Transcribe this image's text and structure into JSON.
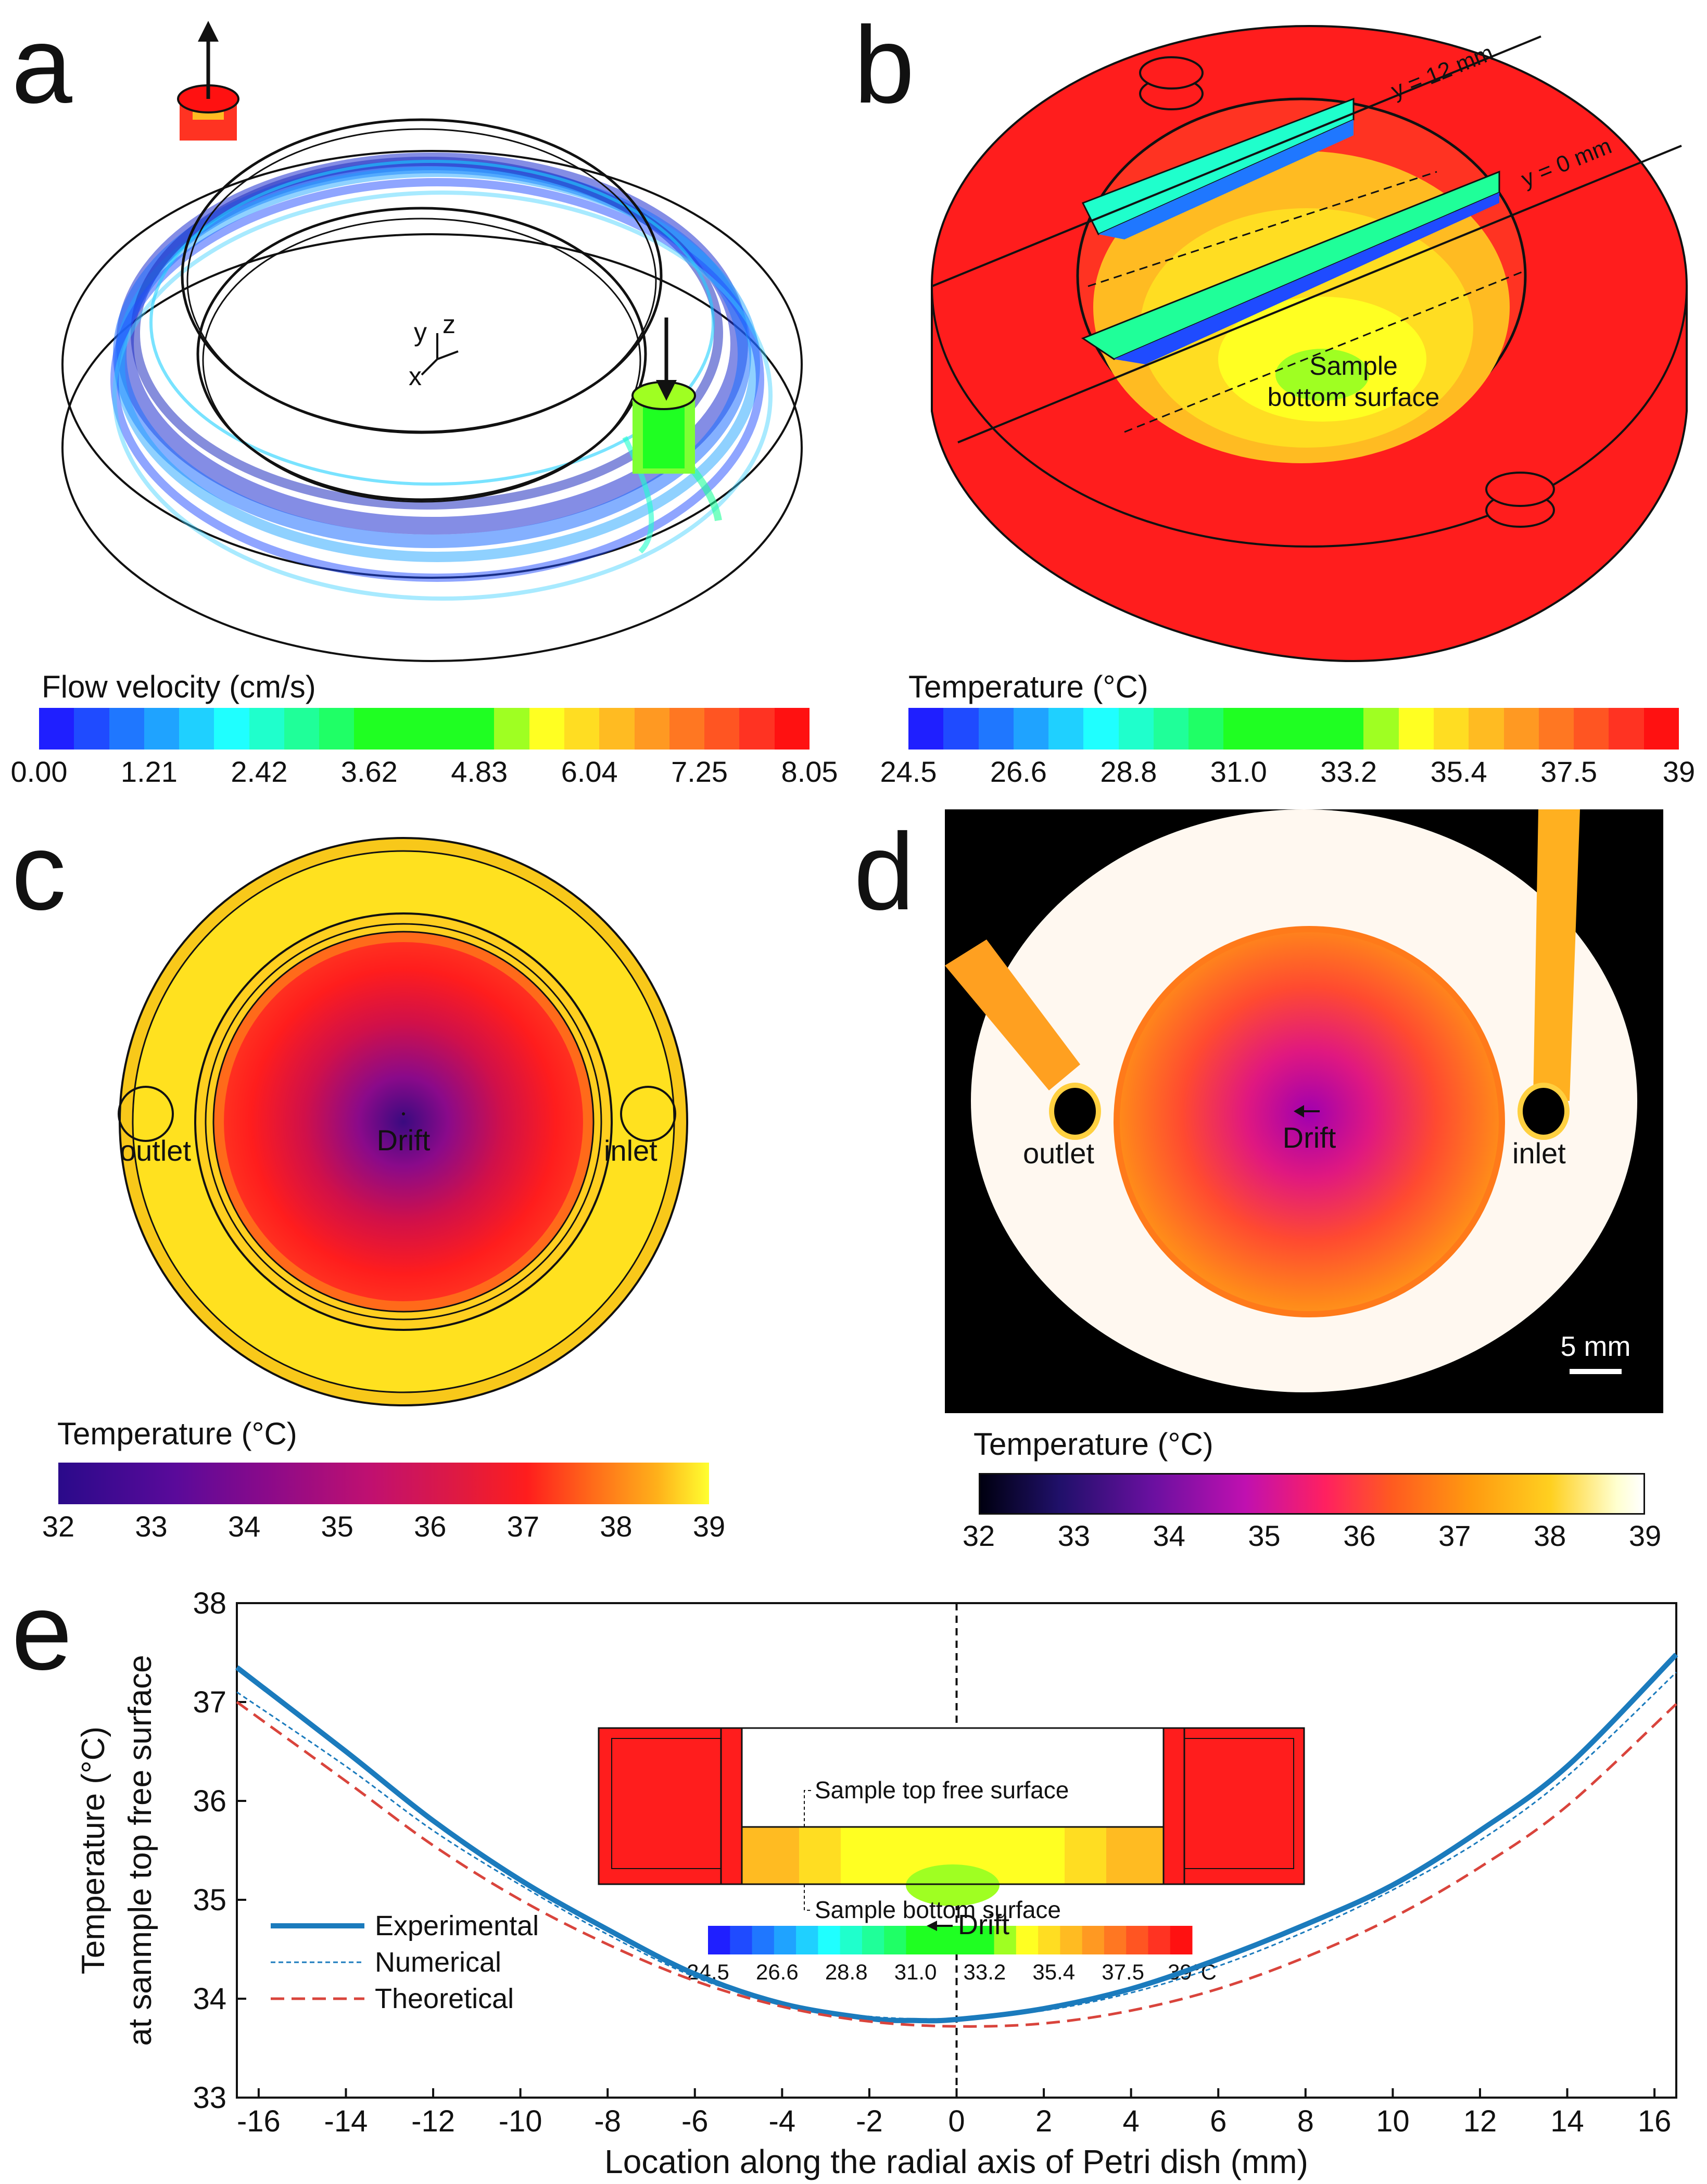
{
  "panels": {
    "a": {
      "letter": "a",
      "axes": {
        "x": "x",
        "y": "y",
        "z": "z"
      },
      "colorbar": {
        "title": "Flow velocity (cm/s)",
        "ticks": [
          "0.00",
          "1.21",
          "2.42",
          "3.62",
          "4.83",
          "6.04",
          "7.25",
          "8.05"
        ],
        "colors": [
          "#1f1fff",
          "#1f4bff",
          "#1f77ff",
          "#1fa3ff",
          "#1fd0ff",
          "#1fffff",
          "#1fffcc",
          "#1fff99",
          "#1fff66",
          "#1fff22",
          "#1fff22",
          "#1fff22",
          "#1fff22",
          "#9fff22",
          "#ffff22",
          "#ffdd22",
          "#ffbb22",
          "#ff9922",
          "#ff7722",
          "#ff5522",
          "#ff3322",
          "#ff1111"
        ]
      }
    },
    "b": {
      "letter": "b",
      "annotation_y12": "y = 12 mm",
      "annotation_y0": "y = 0 mm",
      "label_line1": "Sample",
      "label_line2": "bottom surface",
      "colorbar": {
        "title": "Temperature (°C)",
        "ticks": [
          "24.5",
          "26.6",
          "28.8",
          "31.0",
          "33.2",
          "35.4",
          "37.5",
          "39"
        ],
        "colors": [
          "#1f1fff",
          "#1f4bff",
          "#1f77ff",
          "#1fa3ff",
          "#1fd0ff",
          "#1fffff",
          "#1fffcc",
          "#1fff99",
          "#1fff66",
          "#1fff22",
          "#1fff22",
          "#1fff22",
          "#1fff22",
          "#9fff22",
          "#ffff22",
          "#ffdd22",
          "#ffbb22",
          "#ff9922",
          "#ff7722",
          "#ff5522",
          "#ff3322",
          "#ff1111"
        ]
      }
    },
    "c": {
      "letter": "c",
      "outlet": "outlet",
      "inlet": "inlet",
      "drift": "Drift",
      "colorbar": {
        "title": "Temperature (°C)",
        "ticks": [
          "32",
          "33",
          "34",
          "35",
          "36",
          "37",
          "38",
          "39"
        ]
      }
    },
    "d": {
      "letter": "d",
      "outlet": "outlet",
      "inlet": "inlet",
      "drift": "Drift",
      "scalebar": "5 mm",
      "colorbar": {
        "title": "Temperature (°C)",
        "ticks": [
          "32",
          "33",
          "34",
          "35",
          "36",
          "37",
          "38",
          "39"
        ]
      }
    },
    "e": {
      "letter": "e",
      "inset_top_label": "Sample top free surface",
      "inset_bottom_label": "Sample bottom surface",
      "inset_ticks": [
        "24.5",
        "26.6",
        "28.8",
        "31.0",
        "33.2",
        "35.4",
        "37.5",
        "39°C"
      ],
      "drift": "Drift"
    }
  },
  "chart_data": {
    "type": "line",
    "title": "",
    "xlabel": "Location along the radial axis of Petri dish (mm)",
    "ylabel_line1": "Temperature (°C)",
    "ylabel_line2": "at sanmple top free surface",
    "xlim": [
      -16.5,
      16.5
    ],
    "ylim": [
      33,
      38
    ],
    "xticks": [
      -16,
      -14,
      -12,
      -10,
      -8,
      -6,
      -4,
      -2,
      0,
      2,
      4,
      6,
      8,
      10,
      12,
      14,
      16
    ],
    "yticks": [
      33,
      34,
      35,
      36,
      37,
      38
    ],
    "legend": "bottom-left",
    "series": [
      {
        "name": "Experimental",
        "color": "#1b7bbd",
        "style": "solid-thick",
        "x": [
          -16.5,
          -14,
          -12,
          -10,
          -8,
          -6,
          -4,
          -2,
          -1,
          0,
          2,
          4,
          6,
          8,
          10,
          12,
          14,
          16.5
        ],
        "y": [
          37.35,
          36.5,
          35.8,
          35.2,
          34.7,
          34.25,
          33.95,
          33.8,
          33.78,
          33.79,
          33.9,
          34.1,
          34.4,
          34.75,
          35.15,
          35.7,
          36.35,
          37.48
        ]
      },
      {
        "name": "Numerical",
        "color": "#1b7bbd",
        "style": "dashed-thin",
        "x": [
          -16.5,
          -14,
          -12,
          -10,
          -8,
          -6,
          -4,
          -2,
          0,
          2,
          4,
          6,
          8,
          10,
          12,
          14,
          16.5
        ],
        "y": [
          37.1,
          36.35,
          35.7,
          35.15,
          34.65,
          34.22,
          33.95,
          33.82,
          33.8,
          33.88,
          34.06,
          34.33,
          34.68,
          35.1,
          35.6,
          36.25,
          37.3
        ]
      },
      {
        "name": "Theoretical",
        "color": "#d9443c",
        "style": "dashed-thick",
        "x": [
          -16.5,
          -14,
          -12,
          -10,
          -8,
          -6,
          -4,
          -2,
          0,
          2,
          4,
          6,
          8,
          10,
          12,
          14,
          16.5
        ],
        "y": [
          37.0,
          36.2,
          35.55,
          35.0,
          34.55,
          34.18,
          33.92,
          33.77,
          33.72,
          33.75,
          33.88,
          34.1,
          34.42,
          34.82,
          35.33,
          35.95,
          36.98
        ]
      }
    ]
  }
}
